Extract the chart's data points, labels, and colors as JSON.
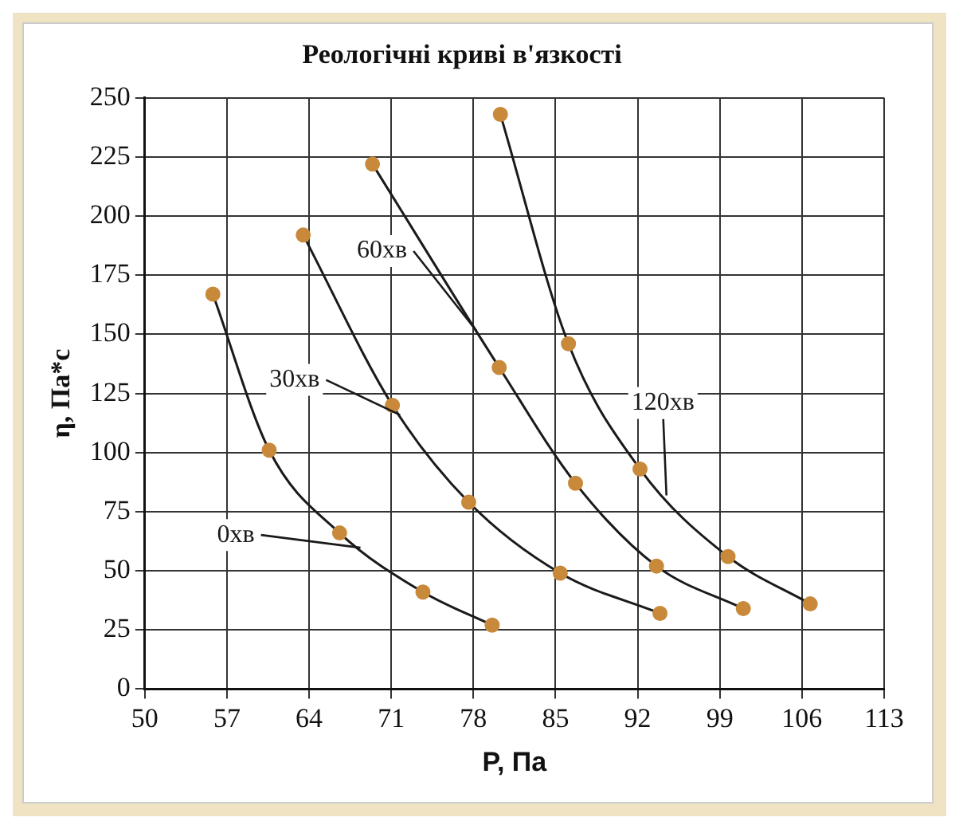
{
  "chart_data": {
    "type": "line",
    "title": "Реологічні криві в'язкості",
    "xlabel": "P, Па",
    "ylabel": "η, Па*с",
    "xlim": [
      50,
      113
    ],
    "xticks": [
      50,
      57,
      64,
      71,
      78,
      85,
      92,
      99,
      106,
      113
    ],
    "ylim": [
      0,
      250
    ],
    "yticks": [
      0,
      25,
      50,
      75,
      100,
      125,
      150,
      175,
      200,
      225,
      250
    ],
    "grid": true,
    "marker": "circle",
    "line_style": "solid",
    "series": [
      {
        "name": "0хв",
        "color": "#c8893a",
        "x": [
          55.8,
          60.6,
          66.6,
          73.7,
          79.6
        ],
        "values": [
          167,
          101,
          66,
          41,
          27
        ]
      },
      {
        "name": "30хв",
        "color": "#c8893a",
        "x": [
          63.5,
          71.1,
          77.6,
          85.4,
          93.9
        ],
        "values": [
          192,
          120,
          79,
          49,
          32
        ]
      },
      {
        "name": "60хв",
        "color": "#c8893a",
        "x": [
          69.4,
          80.2,
          86.7,
          93.6,
          101
        ],
        "values": [
          222,
          136,
          87,
          52,
          34
        ]
      },
      {
        "name": "120хв",
        "color": "#c8893a",
        "x": [
          80.3,
          86.1,
          92.2,
          99.7,
          106.7
        ],
        "values": [
          243,
          146,
          93,
          56,
          36
        ]
      }
    ]
  }
}
